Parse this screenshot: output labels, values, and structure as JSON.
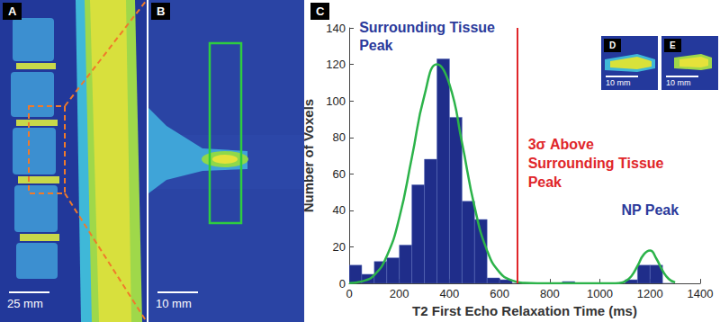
{
  "panels": [
    {
      "label": "A",
      "scale_bar": "25 mm"
    },
    {
      "label": "B",
      "scale_bar": "10 mm"
    },
    {
      "label": "D",
      "scale_bar": "10 mm"
    },
    {
      "label": "E",
      "scale_bar": "10 mm"
    }
  ],
  "chart_data": {
    "type": "histogram",
    "panel": "C",
    "x_label": "T2 First Echo Relaxation Time (ms)",
    "y_label": "Number of Voxels",
    "bins": [
      0,
      50,
      100,
      150,
      200,
      250,
      300,
      350,
      400,
      450,
      500,
      550,
      600,
      650,
      700,
      750,
      800,
      850,
      900,
      950,
      1000,
      1050,
      1100,
      1150,
      1200,
      1250,
      1300
    ],
    "counts": [
      10,
      5,
      12,
      14,
      21,
      54,
      68,
      123,
      91,
      45,
      35,
      3,
      2,
      0,
      0,
      0,
      0,
      1,
      0,
      0,
      0,
      0,
      2,
      10,
      10,
      0
    ],
    "color": "#1f2d8a",
    "xlim": [
      0,
      1400
    ],
    "xticks": [
      0,
      200,
      400,
      600,
      800,
      1000,
      1200,
      1400
    ],
    "ylim": [
      0,
      140
    ],
    "yticks": [
      0,
      20,
      40,
      60,
      80,
      100,
      120,
      140
    ],
    "grid": false,
    "series": [
      {
        "type": "line",
        "color": "#2cb34a",
        "x": [
          0,
          50,
          100,
          150,
          200,
          250,
          300,
          350,
          400,
          450,
          500,
          550,
          600,
          650,
          700,
          800,
          900,
          1000,
          1050,
          1075,
          1100,
          1125,
          1150,
          1175,
          1200,
          1225,
          1250,
          1275,
          1300
        ],
        "values": [
          0.2,
          1.1,
          4.6,
          15,
          36,
          69,
          103,
          120,
          109,
          77,
          42,
          18,
          6,
          1.6,
          0.3,
          0,
          0,
          0,
          0,
          0.2,
          1.1,
          3.9,
          9.6,
          15.9,
          18,
          13.6,
          7,
          2.4,
          0.6
        ]
      }
    ],
    "threshold": {
      "x": 670,
      "label": "3σ Above Surrounding Tissue Peak",
      "color": "#e0262a"
    },
    "annotations": [
      {
        "text": "Surrounding Tissue Peak",
        "x": 40,
        "y": 145,
        "color": "#2b3a9b"
      },
      {
        "text": "NP Peak",
        "x": 1200,
        "y": 45,
        "color": "#2b3a9b"
      }
    ]
  }
}
